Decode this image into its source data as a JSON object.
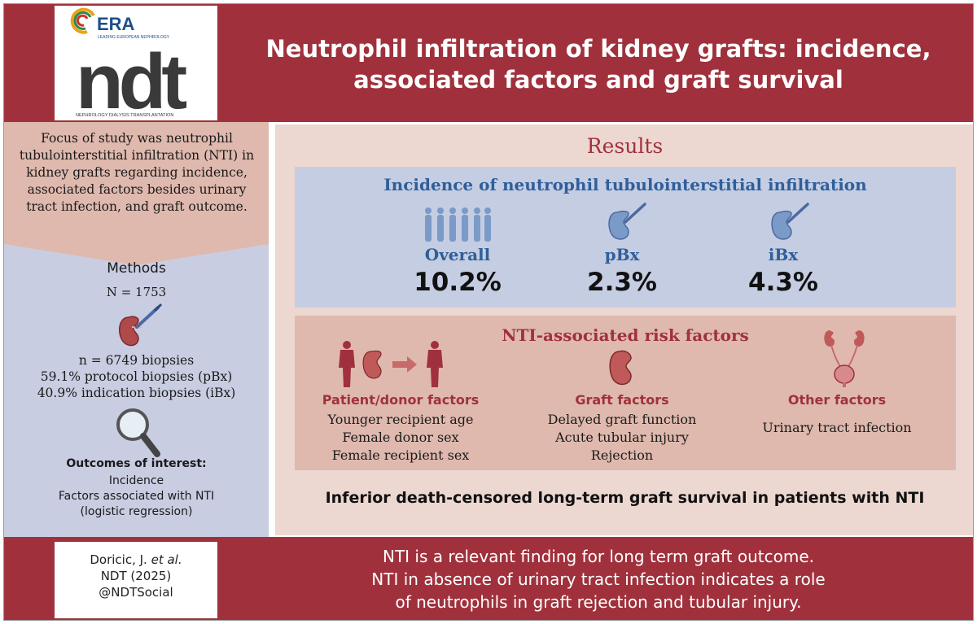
{
  "logo": {
    "era": "ERA",
    "era_sub": "LEADING EUROPEAN NEPHROLOGY",
    "brand": "ndt",
    "brand_sub": "NEPHROLOGY DIALYSIS TRANSPLANTATION"
  },
  "header": {
    "title_line1": "Neutrophil infiltration of kidney grafts: incidence,",
    "title_line2": "associated factors and graft survival"
  },
  "left": {
    "focus_lines": [
      "Focus of study was neutrophil",
      "tubulointerstitial infiltration (NTI) in",
      "kidney grafts regarding incidence,",
      "associated factors besides urinary",
      "tract infection, and graft outcome."
    ],
    "methods_title": "Methods",
    "n_total": "N = 1753",
    "biopsy_lines": [
      "n = 6749 biopsies",
      "59.1% protocol biopsies (pBx)",
      "40.9% indication biopsies (iBx)"
    ],
    "outcomes_title": "Outcomes of interest:",
    "outcomes_lines": [
      "Incidence",
      "Factors associated with NTI",
      "(logistic regression)"
    ]
  },
  "results": {
    "title": "Results",
    "incidence_title": "Incidence of neutrophil tubulointerstitial infiltration",
    "stats": [
      {
        "label": "Overall",
        "value": "10.2%"
      },
      {
        "label": "pBx",
        "value": "2.3%"
      },
      {
        "label": "iBx",
        "value": "4.3%"
      }
    ],
    "risk_title": "NTI-associated risk factors",
    "risk_cols": [
      {
        "head": "Patient/donor factors",
        "items": [
          "Younger recipient age",
          "Female donor sex",
          "Female recipient sex"
        ]
      },
      {
        "head": "Graft factors",
        "items": [
          "Delayed graft function",
          "Acute tubular injury",
          "Rejection"
        ]
      },
      {
        "head": "Other factors",
        "items": [
          "Urinary tract infection"
        ]
      }
    ],
    "survival": "Inferior death-censored long-term graft survival in patients with NTI"
  },
  "footer": {
    "cite_author": "Doricic, J.",
    "cite_etal": "et al.",
    "cite_journal": "NDT (2025)",
    "cite_handle": "@NDTSocial",
    "conclusion_lines": [
      "NTI is a relevant finding for long term graft outcome.",
      "NTI in absence of urinary tract infection indicates a role",
      "of neutrophils in graft rejection and tubular injury."
    ]
  },
  "colors": {
    "brand_red": "#a0313c",
    "blue_text": "#2f5f9b",
    "blue_panel": "#c5cde2",
    "peach_panel": "#dfb9ae"
  }
}
